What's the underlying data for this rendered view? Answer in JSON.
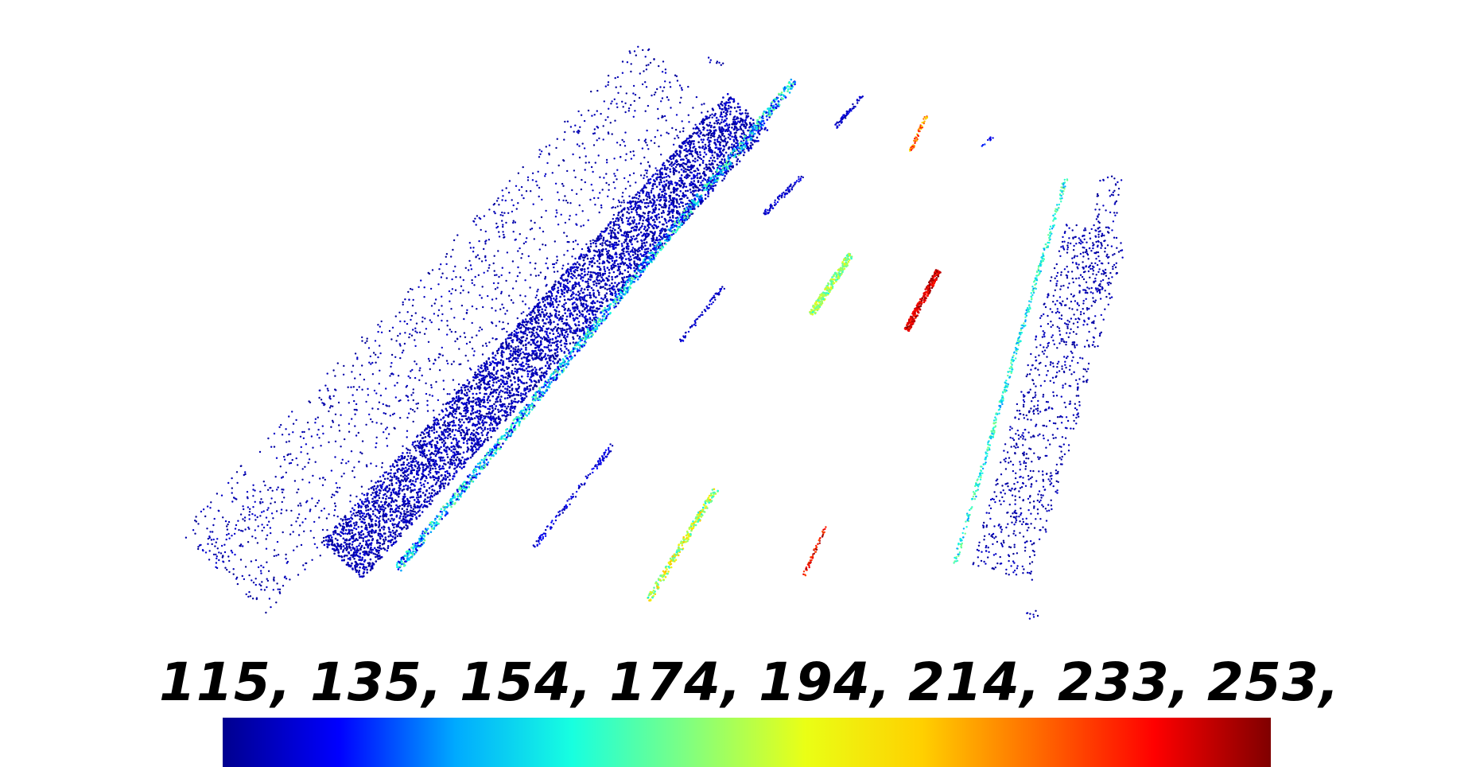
{
  "colorbar": {
    "tick_labels": [
      "115,",
      "135,",
      "154,",
      "174,",
      "194,",
      "214,",
      "233,",
      "253,"
    ],
    "range": [
      115,
      253
    ],
    "colormap": "jet",
    "stops": [
      "#00008f",
      "#0000ff",
      "#00aaff",
      "#17ffe0",
      "#80ff80",
      "#eaff15",
      "#ffd000",
      "#ff6a00",
      "#ff0000",
      "#800000"
    ]
  },
  "background_color": "#ffffff",
  "point_cloud": {
    "dominant_color": "#1a1aa0"
  }
}
